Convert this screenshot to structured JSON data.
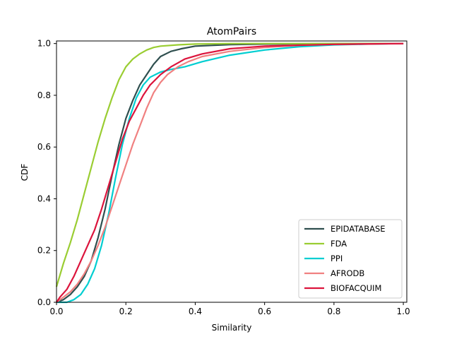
{
  "chart_data": {
    "type": "line",
    "title": "AtomPairs",
    "xlabel": "Similarity",
    "ylabel": "CDF",
    "xlim": [
      0.0,
      1.01
    ],
    "ylim": [
      0.0,
      1.01
    ],
    "x_ticks": [
      "0.0",
      "0.2",
      "0.4",
      "0.6",
      "0.8",
      "1.0"
    ],
    "y_ticks": [
      "0.0",
      "0.2",
      "0.4",
      "0.6",
      "0.8",
      "1.0"
    ],
    "grid": false,
    "legend_position": "lower-right",
    "series": [
      {
        "name": "EPIDATABASE",
        "color": "#2f4f4f",
        "points": [
          [
            0.0,
            0.0
          ],
          [
            0.02,
            0.01
          ],
          [
            0.04,
            0.03
          ],
          [
            0.06,
            0.06
          ],
          [
            0.08,
            0.1
          ],
          [
            0.1,
            0.16
          ],
          [
            0.12,
            0.25
          ],
          [
            0.14,
            0.36
          ],
          [
            0.16,
            0.49
          ],
          [
            0.18,
            0.61
          ],
          [
            0.2,
            0.71
          ],
          [
            0.22,
            0.78
          ],
          [
            0.24,
            0.84
          ],
          [
            0.26,
            0.88
          ],
          [
            0.28,
            0.92
          ],
          [
            0.3,
            0.95
          ],
          [
            0.33,
            0.97
          ],
          [
            0.36,
            0.98
          ],
          [
            0.4,
            0.99
          ],
          [
            0.5,
            0.996
          ],
          [
            0.6,
            0.998
          ],
          [
            0.8,
            1.0
          ],
          [
            1.0,
            1.0
          ]
        ]
      },
      {
        "name": "FDA",
        "color": "#9acd32",
        "points": [
          [
            0.0,
            0.06
          ],
          [
            0.02,
            0.15
          ],
          [
            0.04,
            0.23
          ],
          [
            0.06,
            0.32
          ],
          [
            0.08,
            0.42
          ],
          [
            0.1,
            0.52
          ],
          [
            0.12,
            0.62
          ],
          [
            0.14,
            0.71
          ],
          [
            0.16,
            0.79
          ],
          [
            0.18,
            0.86
          ],
          [
            0.2,
            0.91
          ],
          [
            0.22,
            0.94
          ],
          [
            0.24,
            0.96
          ],
          [
            0.26,
            0.975
          ],
          [
            0.28,
            0.985
          ],
          [
            0.3,
            0.99
          ],
          [
            0.35,
            0.995
          ],
          [
            0.4,
            0.998
          ],
          [
            0.5,
            1.0
          ],
          [
            1.0,
            1.0
          ]
        ]
      },
      {
        "name": "PPI",
        "color": "#00ced1",
        "points": [
          [
            0.0,
            0.0
          ],
          [
            0.03,
            0.0
          ],
          [
            0.05,
            0.01
          ],
          [
            0.07,
            0.03
          ],
          [
            0.09,
            0.07
          ],
          [
            0.11,
            0.13
          ],
          [
            0.13,
            0.22
          ],
          [
            0.15,
            0.34
          ],
          [
            0.17,
            0.48
          ],
          [
            0.19,
            0.61
          ],
          [
            0.21,
            0.71
          ],
          [
            0.23,
            0.79
          ],
          [
            0.25,
            0.84
          ],
          [
            0.27,
            0.87
          ],
          [
            0.3,
            0.89
          ],
          [
            0.33,
            0.9
          ],
          [
            0.37,
            0.91
          ],
          [
            0.42,
            0.93
          ],
          [
            0.5,
            0.955
          ],
          [
            0.6,
            0.975
          ],
          [
            0.7,
            0.988
          ],
          [
            0.8,
            0.995
          ],
          [
            0.9,
            0.998
          ],
          [
            1.0,
            1.0
          ]
        ]
      },
      {
        "name": "AFRODB",
        "color": "#f08080",
        "points": [
          [
            0.0,
            0.0
          ],
          [
            0.02,
            0.02
          ],
          [
            0.04,
            0.04
          ],
          [
            0.06,
            0.07
          ],
          [
            0.08,
            0.11
          ],
          [
            0.1,
            0.16
          ],
          [
            0.12,
            0.22
          ],
          [
            0.14,
            0.29
          ],
          [
            0.16,
            0.37
          ],
          [
            0.18,
            0.45
          ],
          [
            0.2,
            0.53
          ],
          [
            0.22,
            0.61
          ],
          [
            0.24,
            0.68
          ],
          [
            0.26,
            0.75
          ],
          [
            0.28,
            0.81
          ],
          [
            0.3,
            0.85
          ],
          [
            0.32,
            0.88
          ],
          [
            0.35,
            0.91
          ],
          [
            0.38,
            0.93
          ],
          [
            0.42,
            0.95
          ],
          [
            0.5,
            0.97
          ],
          [
            0.6,
            0.985
          ],
          [
            0.7,
            0.993
          ],
          [
            0.8,
            0.997
          ],
          [
            1.0,
            1.0
          ]
        ]
      },
      {
        "name": "BIOFACQUIM",
        "color": "#dc143c",
        "points": [
          [
            0.0,
            0.0
          ],
          [
            0.01,
            0.02
          ],
          [
            0.03,
            0.05
          ],
          [
            0.05,
            0.1
          ],
          [
            0.07,
            0.16
          ],
          [
            0.09,
            0.22
          ],
          [
            0.11,
            0.28
          ],
          [
            0.13,
            0.36
          ],
          [
            0.15,
            0.45
          ],
          [
            0.17,
            0.54
          ],
          [
            0.19,
            0.63
          ],
          [
            0.21,
            0.7
          ],
          [
            0.23,
            0.75
          ],
          [
            0.25,
            0.8
          ],
          [
            0.27,
            0.84
          ],
          [
            0.3,
            0.88
          ],
          [
            0.33,
            0.91
          ],
          [
            0.37,
            0.94
          ],
          [
            0.42,
            0.96
          ],
          [
            0.5,
            0.98
          ],
          [
            0.6,
            0.99
          ],
          [
            0.8,
            0.997
          ],
          [
            1.0,
            1.0
          ]
        ]
      }
    ]
  }
}
